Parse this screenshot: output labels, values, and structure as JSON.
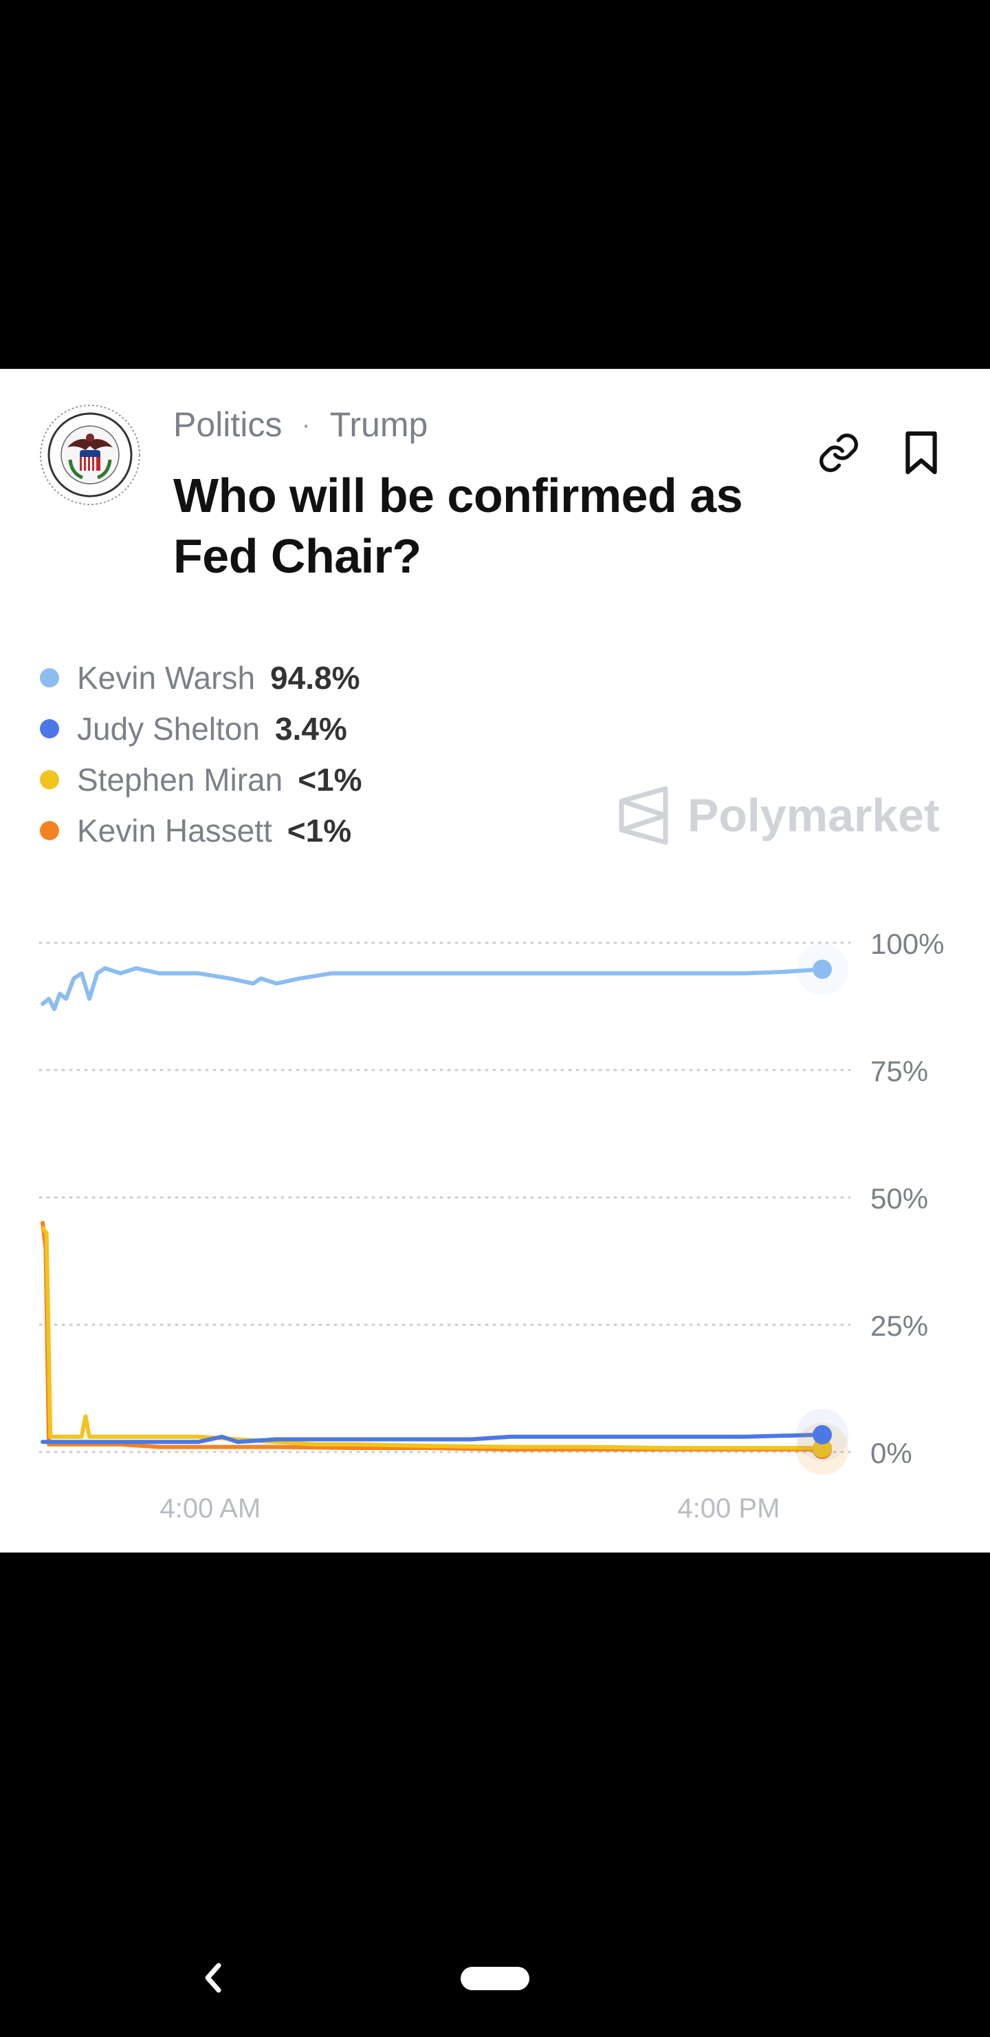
{
  "header": {
    "category": "Politics",
    "subcategory": "Trump",
    "separator": "·",
    "title": "Who will be confirmed as Fed Chair?"
  },
  "icons": {
    "logo": "federal-reserve-seal",
    "link": "link-icon",
    "bookmark": "bookmark-icon",
    "back": "back-chevron-icon"
  },
  "legend": [
    {
      "name": "Kevin Warsh",
      "value": "94.8%",
      "color": "#8cbdf0"
    },
    {
      "name": "Judy Shelton",
      "value": "3.4%",
      "color": "#4b78e6"
    },
    {
      "name": "Stephen Miran",
      "value": "<1%",
      "color": "#f2c41c"
    },
    {
      "name": "Kevin Hassett",
      "value": "<1%",
      "color": "#f58220"
    }
  ],
  "watermark": {
    "text": "Polymarket"
  },
  "chart_data": {
    "type": "line",
    "title": "",
    "xlabel": "",
    "ylabel": "",
    "ylim": [
      0,
      100
    ],
    "yticks": [
      "100%",
      "75%",
      "50%",
      "25%",
      "0%"
    ],
    "yticks_values": [
      100,
      75,
      50,
      25,
      0
    ],
    "xticks": [
      "4:00 AM",
      "4:00 PM"
    ],
    "xticks_values": [
      0.215,
      0.88
    ],
    "xlim": [
      0,
      1
    ],
    "grid": true,
    "series": [
      {
        "name": "Kevin Warsh",
        "color": "#8cbdf0",
        "x": [
          0.0,
          0.008,
          0.015,
          0.022,
          0.03,
          0.04,
          0.05,
          0.06,
          0.07,
          0.08,
          0.1,
          0.12,
          0.15,
          0.2,
          0.24,
          0.27,
          0.28,
          0.3,
          0.33,
          0.37,
          0.4,
          0.45,
          0.5,
          0.55,
          0.6,
          0.65,
          0.7,
          0.75,
          0.8,
          0.85,
          0.9,
          0.95,
          1.0
        ],
        "y": [
          88,
          89,
          87,
          90,
          89,
          93,
          94,
          89,
          94,
          95,
          94,
          95,
          94,
          94,
          93,
          92,
          93,
          92,
          93,
          94,
          94,
          94,
          94,
          94,
          94,
          94,
          94,
          94,
          94,
          94,
          94,
          94.3,
          94.8
        ]
      },
      {
        "name": "Judy Shelton",
        "color": "#4b78e6",
        "x": [
          0.0,
          0.01,
          0.05,
          0.1,
          0.15,
          0.2,
          0.23,
          0.25,
          0.3,
          0.4,
          0.5,
          0.55,
          0.6,
          0.7,
          0.8,
          0.9,
          1.0
        ],
        "y": [
          2,
          2,
          2,
          2,
          2,
          2,
          3,
          2,
          2.5,
          2.5,
          2.5,
          2.5,
          3,
          3,
          3,
          3,
          3.4
        ]
      },
      {
        "name": "Stephen Miran",
        "color": "#f2c41c",
        "x": [
          0.0,
          0.005,
          0.01,
          0.05,
          0.055,
          0.06,
          0.1,
          0.15,
          0.2,
          0.25,
          0.3,
          0.35,
          0.4,
          0.5,
          0.6,
          0.7,
          0.8,
          0.9,
          1.0
        ],
        "y": [
          44,
          43,
          3,
          3,
          7,
          3,
          3,
          3,
          3,
          2.5,
          2,
          1.5,
          1.5,
          1.2,
          1,
          1,
          0.8,
          0.8,
          0.8
        ]
      },
      {
        "name": "Kevin Hassett",
        "color": "#f58220",
        "x": [
          0.0,
          0.004,
          0.008,
          0.012,
          0.05,
          0.1,
          0.15,
          0.2,
          0.25,
          0.3,
          0.4,
          0.5,
          0.6,
          0.7,
          0.8,
          0.9,
          1.0
        ],
        "y": [
          45,
          40,
          1.5,
          1.5,
          1.5,
          1.5,
          1,
          1,
          1,
          1,
          0.8,
          0.8,
          0.5,
          0.5,
          0.5,
          0.5,
          0.5
        ]
      }
    ]
  }
}
